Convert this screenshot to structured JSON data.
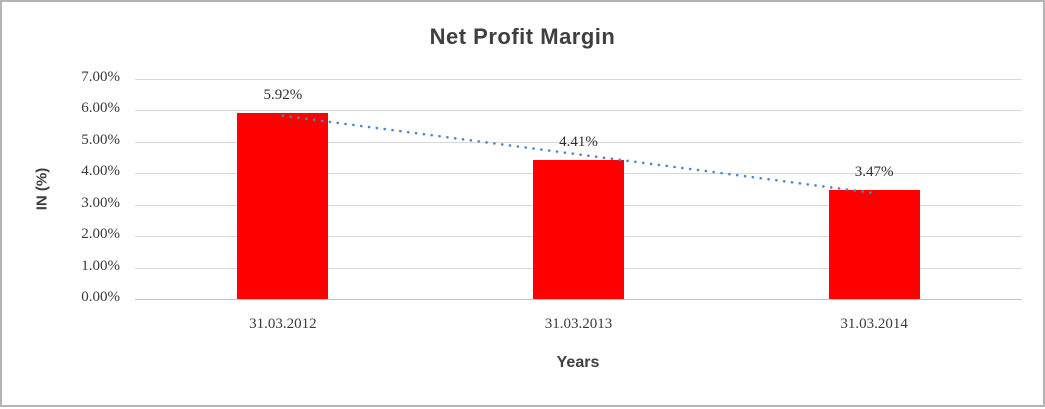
{
  "chart_data": {
    "type": "bar",
    "title": "Net Profit Margin",
    "xlabel": "Years",
    "ylabel": "IN (%)",
    "categories": [
      "31.03.2012",
      "31.03.2013",
      "31.03.2014"
    ],
    "values": [
      5.92,
      4.41,
      3.47
    ],
    "data_labels": [
      "5.92%",
      "4.41%",
      "3.47%"
    ],
    "y_ticks": [
      "7.00%",
      "6.00%",
      "5.00%",
      "4.00%",
      "3.00%",
      "2.00%",
      "1.00%",
      "0.00%"
    ],
    "y_tick_step": 1,
    "ylim": [
      0,
      7
    ],
    "grid": true,
    "legend": "none",
    "bar_color": "#ff0000",
    "trendline": {
      "type": "linear",
      "style": "dotted",
      "color": "#4a86c8",
      "start_value": 5.83,
      "end_value": 3.37
    },
    "colors": {
      "title_text": "#3f3f3f",
      "axis_text": "#3a3a3a",
      "gridline": "#d9d9d9",
      "axis_line": "#c3c3c3",
      "border": "#b4b4b4",
      "background": "#ffffff"
    }
  }
}
